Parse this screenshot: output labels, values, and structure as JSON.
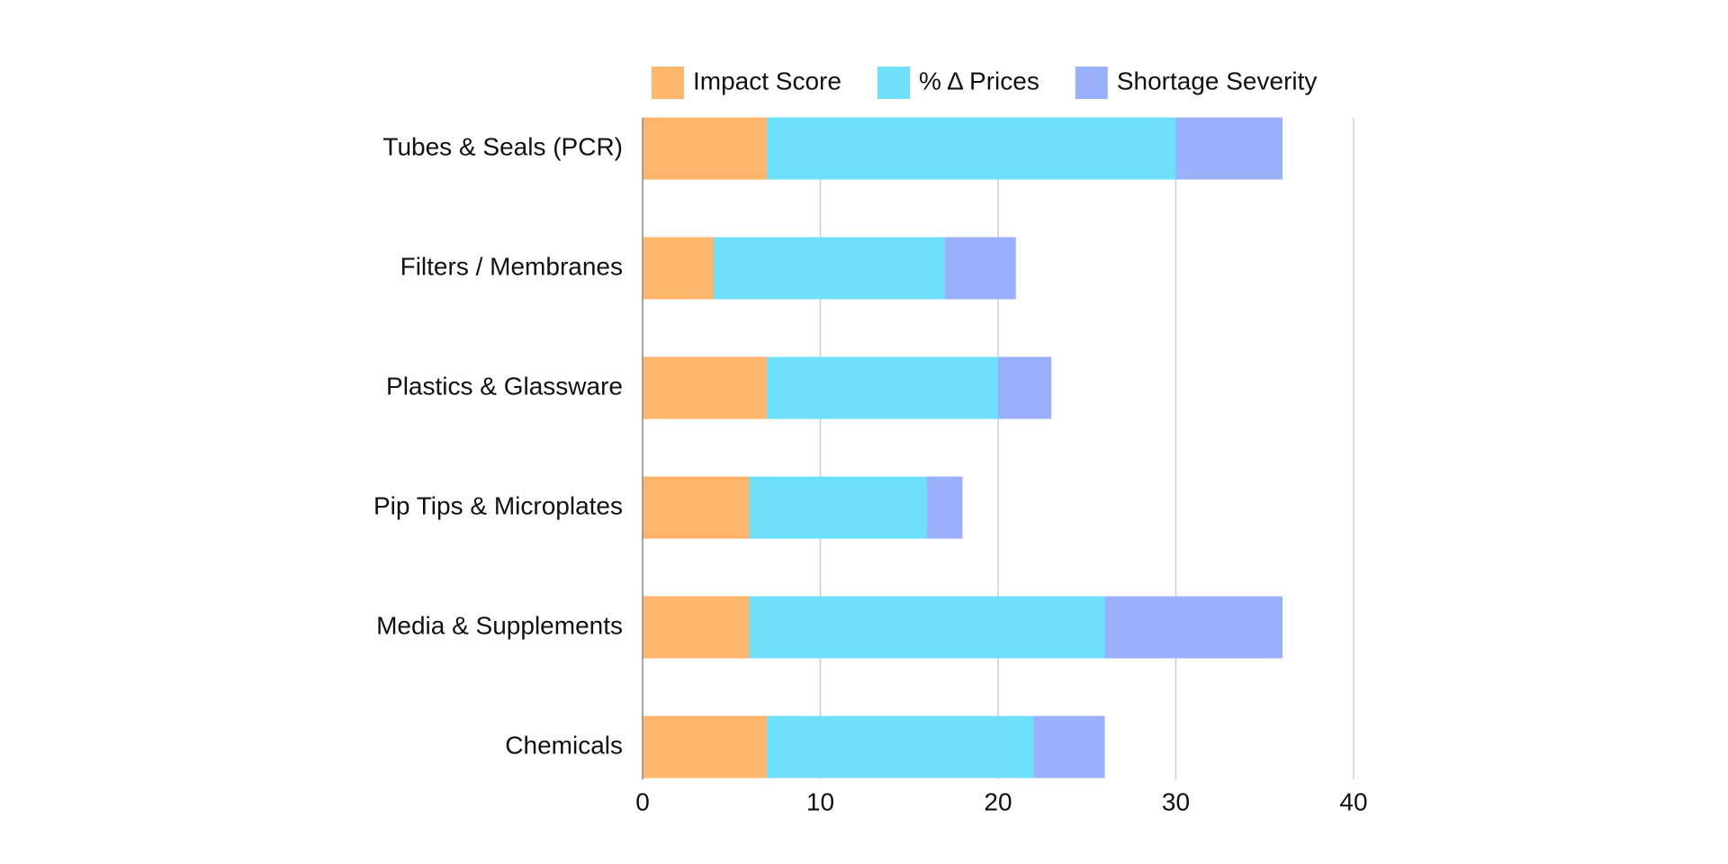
{
  "chart_data": {
    "type": "stacked-bar-horizontal",
    "categories": [
      "Tubes & Seals (PCR)",
      "Filters / Membranes",
      "Plastics & Glassware",
      "Pip Tips & Microplates",
      "Media & Supplements",
      "Chemicals"
    ],
    "series": [
      {
        "name": "Impact Score",
        "color": "#ffb56b",
        "values": [
          7,
          4,
          7,
          6,
          6,
          7
        ]
      },
      {
        "name": "% Δ Prices",
        "color": "#6fe0fc",
        "values": [
          23,
          13,
          13,
          10,
          20,
          15
        ]
      },
      {
        "name": "Shortage Severity",
        "color": "#9bb0fc",
        "values": [
          6,
          4,
          3,
          2,
          10,
          4
        ]
      }
    ],
    "xlim": [
      0,
      40
    ],
    "xticks": [
      0,
      10,
      20,
      30,
      40
    ],
    "grid": true,
    "legend": "top"
  }
}
